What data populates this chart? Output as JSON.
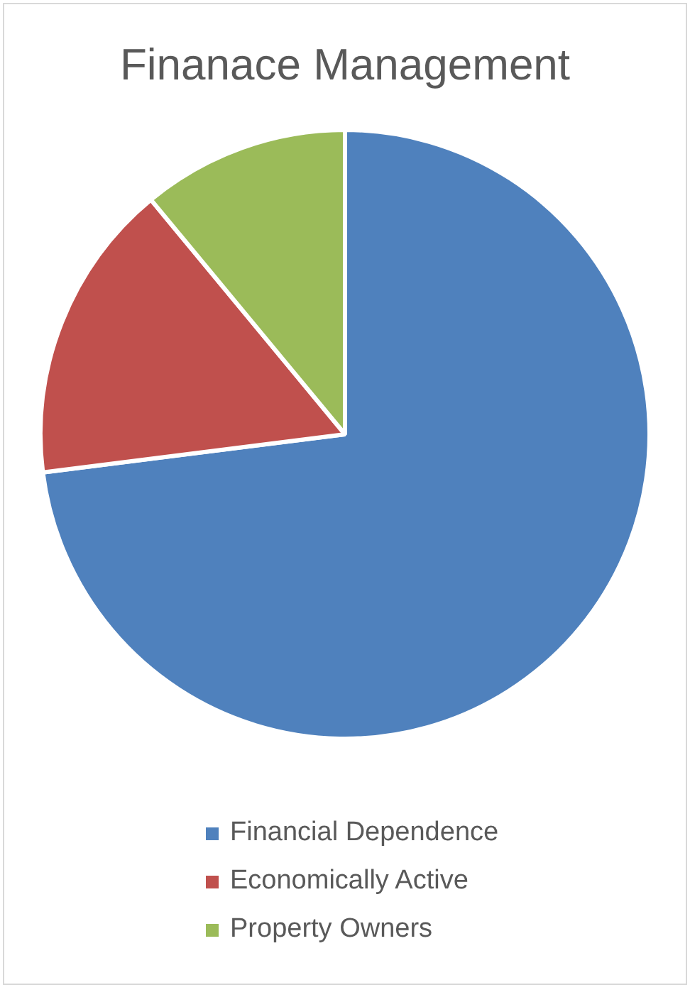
{
  "chart_data": {
    "type": "pie",
    "title": "Finanace Management",
    "categories": [
      "Financial Dependence",
      "Economically Active",
      "Property Owners"
    ],
    "values": [
      73,
      16,
      11
    ],
    "colors": [
      "#4f81bd",
      "#c0504d",
      "#9bbb59"
    ],
    "legend": "bottom"
  }
}
